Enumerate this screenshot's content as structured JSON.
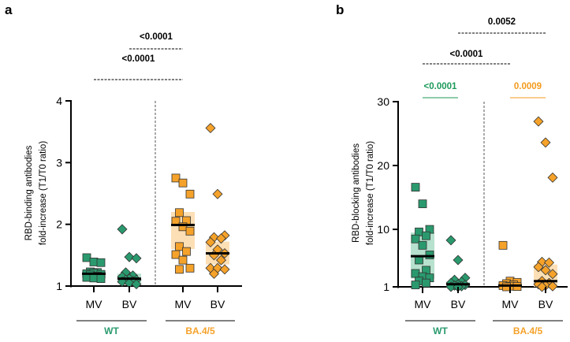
{
  "colors": {
    "wt": "#2a9a6e",
    "ba": "#f5a22a",
    "wt_box": "#a9dcc6",
    "ba_box": "#fcd9a8"
  },
  "chart_data": [
    {
      "panel_label": "a",
      "type": "scatter",
      "ylabel_lines": [
        "RBD-binding antibodies",
        "fold-increase (T1/T0 ratio)"
      ],
      "ylim": [
        1,
        4
      ],
      "yticks": [
        1,
        2,
        3,
        4
      ],
      "groups": [
        {
          "name": "WT",
          "color": "wt",
          "categories": [
            {
              "label": "MV",
              "marker": "square",
              "median": 1.2,
              "iqr": [
                1.13,
                1.25
              ],
              "values": [
                1.46,
                1.39,
                1.38,
                1.23,
                1.22,
                1.2,
                1.21,
                1.19,
                1.18,
                1.16,
                1.14,
                1.13,
                1.12
              ]
            },
            {
              "label": "BV",
              "marker": "diamond",
              "median": 1.12,
              "iqr": [
                1.05,
                1.2
              ],
              "values": [
                1.92,
                1.47,
                1.45,
                1.22,
                1.17,
                1.15,
                1.12,
                1.1,
                1.1,
                1.08,
                1.07,
                1.05,
                1.03
              ]
            }
          ]
        },
        {
          "name": "BA.4/5",
          "color": "ba",
          "categories": [
            {
              "label": "MV",
              "marker": "square",
              "median": 1.99,
              "iqr": [
                1.6,
                2.2
              ],
              "values": [
                2.75,
                2.67,
                2.49,
                2.19,
                2.06,
                2.05,
                1.96,
                1.89,
                1.64,
                1.56,
                1.51,
                1.42,
                1.29,
                1.27
              ]
            },
            {
              "label": "BV",
              "marker": "diamond",
              "median": 1.53,
              "iqr": [
                1.35,
                1.72
              ],
              "values": [
                3.56,
                2.49,
                1.82,
                1.79,
                1.77,
                1.71,
                1.59,
                1.53,
                1.5,
                1.42,
                1.29,
                1.29,
                1.27,
                1.2
              ]
            }
          ]
        }
      ],
      "annotations": [
        {
          "text": "<0.0001",
          "from": [
            0,
            1
          ],
          "to": [
            1,
            0
          ],
          "color": "#000000",
          "style": "dashed",
          "level": 2
        },
        {
          "text": "<0.0001",
          "from": [
            0,
            0
          ],
          "to": [
            1,
            0
          ],
          "color": "#000000",
          "style": "dashed",
          "level": 1
        }
      ]
    },
    {
      "panel_label": "b",
      "type": "scatter",
      "ylabel_lines": [
        "RBD-blocking antibodies",
        "fold-increase (T1/T0 ratio)"
      ],
      "ylim": [
        1,
        30
      ],
      "yticks": [
        1,
        10,
        20,
        30
      ],
      "groups": [
        {
          "name": "WT",
          "color": "wt",
          "categories": [
            {
              "label": "MV",
              "marker": "square",
              "median": 5.8,
              "iqr": [
                2.3,
                9.5
              ],
              "values": [
                16.6,
                14.0,
                10.0,
                9.6,
                9.0,
                8.5,
                7.5,
                6.0,
                5.2,
                3.6,
                3.1,
                2.6,
                2.4,
                1.9,
                1.6,
                1.3
              ]
            },
            {
              "label": "BV",
              "marker": "diamond",
              "median": 1.4,
              "iqr": [
                1.1,
                1.8
              ],
              "values": [
                8.3,
                5.2,
                2.4,
                2.1,
                1.8,
                1.6,
                1.4,
                1.3,
                1.2,
                1.1,
                1.0,
                1.0
              ]
            }
          ]
        },
        {
          "name": "BA.4/5",
          "color": "ba",
          "categories": [
            {
              "label": "MV",
              "marker": "square",
              "median": 1.2,
              "iqr": [
                1.0,
                1.6
              ],
              "values": [
                7.5,
                1.9,
                1.7,
                1.5,
                1.3,
                1.2,
                1.1,
                1.05,
                1.0
              ]
            },
            {
              "label": "BV",
              "marker": "diamond",
              "median": 1.9,
              "iqr": [
                1.0,
                4.5
              ],
              "values": [
                26.9,
                23.6,
                18.1,
                4.9,
                4.8,
                4.1,
                3.6,
                3.0,
                1.9,
                1.6,
                1.4,
                1.2,
                1.1,
                1.0
              ]
            }
          ]
        }
      ],
      "annotations": [
        {
          "text": "0.0052",
          "from": [
            0,
            1
          ],
          "to": [
            1,
            1
          ],
          "color": "#000000",
          "style": "dashed",
          "level": 4
        },
        {
          "text": "<0.0001",
          "from": [
            0,
            0
          ],
          "to": [
            1,
            0
          ],
          "color": "#000000",
          "style": "dashed",
          "level": 3
        },
        {
          "text": "<0.0001",
          "from": [
            0,
            0
          ],
          "to": [
            0,
            1
          ],
          "color": "#1c9a5a",
          "style": "solid",
          "level": 1
        },
        {
          "text": "0.0009",
          "from": [
            1,
            0
          ],
          "to": [
            1,
            1
          ],
          "color": "#f39a1c",
          "style": "solid",
          "level": 1
        }
      ]
    }
  ]
}
